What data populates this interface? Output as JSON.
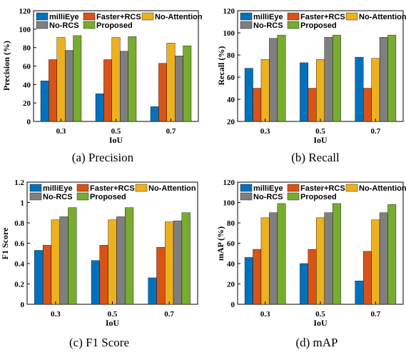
{
  "colors": {
    "milliEye": "#0072BD",
    "Faster+RCS": "#D95319",
    "No-Attention": "#EDB120",
    "No-RCS": "#7F7F7F",
    "Proposed": "#77AC30"
  },
  "chart_data": [
    {
      "type": "bar",
      "caption": "(a)  Precision",
      "xlabel": "IoU",
      "ylabel": "Precision (%)",
      "categories": [
        "0.3",
        "0.5",
        "0.7"
      ],
      "ylim": [
        0,
        120
      ],
      "yticks": [
        "0",
        "20",
        "40",
        "60",
        "80",
        "100",
        "120"
      ],
      "legend": "top",
      "series": [
        {
          "name": "milliEye",
          "values": [
            44,
            30,
            16
          ]
        },
        {
          "name": "Faster+RCS",
          "values": [
            67,
            67,
            63
          ]
        },
        {
          "name": "No-Attention",
          "values": [
            91,
            91,
            85
          ]
        },
        {
          "name": "No-RCS",
          "values": [
            77,
            76,
            71
          ]
        },
        {
          "name": "Proposed",
          "values": [
            93,
            92,
            82
          ]
        }
      ]
    },
    {
      "type": "bar",
      "caption": "(b)  Recall",
      "xlabel": "IoU",
      "ylabel": "Recall (%)",
      "categories": [
        "0.3",
        "0.5",
        "0.7"
      ],
      "ylim": [
        20,
        120
      ],
      "yticks": [
        "20",
        "40",
        "60",
        "80",
        "100",
        "120"
      ],
      "legend": "top",
      "series": [
        {
          "name": "milliEye",
          "values": [
            68,
            73,
            78
          ]
        },
        {
          "name": "Faster+RCS",
          "values": [
            50,
            50,
            50
          ]
        },
        {
          "name": "No-Attention",
          "values": [
            76,
            76,
            77
          ]
        },
        {
          "name": "No-RCS",
          "values": [
            95,
            96,
            96
          ]
        },
        {
          "name": "Proposed",
          "values": [
            98,
            98,
            98
          ]
        }
      ]
    },
    {
      "type": "bar",
      "caption": "(c)  F1 Score",
      "xlabel": "IoU",
      "ylabel": "F1 Score",
      "categories": [
        "0.3",
        "0.5",
        "0.7"
      ],
      "ylim": [
        0,
        1.2
      ],
      "yticks": [
        "0",
        "0.2",
        "0.4",
        "0.6",
        "0.8",
        "1",
        "1.2"
      ],
      "legend": "top",
      "series": [
        {
          "name": "milliEye",
          "values": [
            0.53,
            0.43,
            0.26
          ]
        },
        {
          "name": "Faster+RCS",
          "values": [
            0.58,
            0.58,
            0.56
          ]
        },
        {
          "name": "No-Attention",
          "values": [
            0.83,
            0.83,
            0.81
          ]
        },
        {
          "name": "No-RCS",
          "values": [
            0.86,
            0.86,
            0.82
          ]
        },
        {
          "name": "Proposed",
          "values": [
            0.95,
            0.95,
            0.9
          ]
        }
      ]
    },
    {
      "type": "bar",
      "caption": "(d)  mAP",
      "xlabel": "IoU",
      "ylabel": "mAP (%)",
      "categories": [
        "0.3",
        "0.5",
        "0.7"
      ],
      "ylim": [
        0,
        120
      ],
      "yticks": [
        "0",
        "20",
        "40",
        "60",
        "80",
        "100",
        "120"
      ],
      "legend": "top",
      "series": [
        {
          "name": "milliEye",
          "values": [
            46,
            40,
            23
          ]
        },
        {
          "name": "Faster+RCS",
          "values": [
            54,
            54,
            52
          ]
        },
        {
          "name": "No-Attention",
          "values": [
            85,
            85,
            83
          ]
        },
        {
          "name": "No-RCS",
          "values": [
            90,
            90,
            90
          ]
        },
        {
          "name": "Proposed",
          "values": [
            99,
            99,
            98
          ]
        }
      ]
    }
  ]
}
